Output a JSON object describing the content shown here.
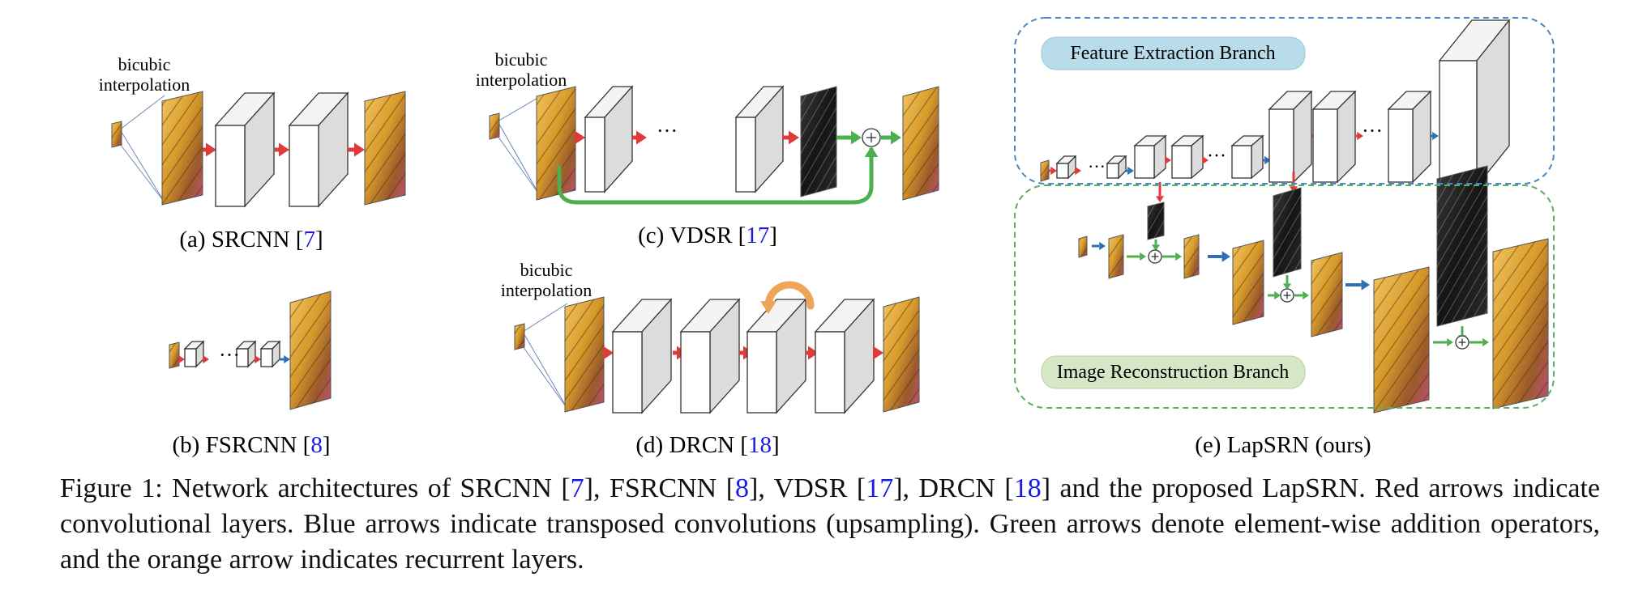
{
  "labels": {
    "bicubic": "bicubic",
    "interpolation": "interpolation",
    "dots": "···",
    "feature_branch": "Feature Extraction Branch",
    "recon_branch": "Image Reconstruction Branch",
    "plus": "+"
  },
  "panels": [
    {
      "id": "a",
      "prefix": "(a) SRCNN [",
      "ref": "7",
      "suffix": "]"
    },
    {
      "id": "b",
      "prefix": "(b) FSRCNN [",
      "ref": "8",
      "suffix": "]"
    },
    {
      "id": "c",
      "prefix": "(c) VDSR [",
      "ref": "17",
      "suffix": "]"
    },
    {
      "id": "d",
      "prefix": "(d) DRCN [",
      "ref": "18",
      "suffix": "]"
    },
    {
      "id": "e",
      "prefix": "(e) LapSRN (ours)",
      "ref": "",
      "suffix": ""
    }
  ],
  "caption": {
    "t1": "Figure 1:  Network architectures of SRCNN [",
    "r1": "7",
    "t2": "], FSRCNN [",
    "r2": "8",
    "t3": "], VDSR [",
    "r3": "17",
    "t4": "], DRCN [",
    "r4": "18",
    "t5": "] and the proposed LapSRN. Red arrows indicate convolutional layers.  Blue arrows indicate transposed convolutions (upsampling).  Green arrows denote element-wise addition operators, and the orange arrow indicates recurrent layers."
  },
  "colors": {
    "conv_arrow": "#e03b3b",
    "upsample_arrow": "#2e6fb5",
    "add_arrow": "#4caf50",
    "recurrent_arrow": "#f0a45a",
    "ref_link": "#1a1ae6",
    "feature_box_border": "#4a86c5",
    "recon_box_border": "#5cae62",
    "feature_label_bg": "#b9dcea",
    "recon_label_bg": "#d5e7c6"
  }
}
